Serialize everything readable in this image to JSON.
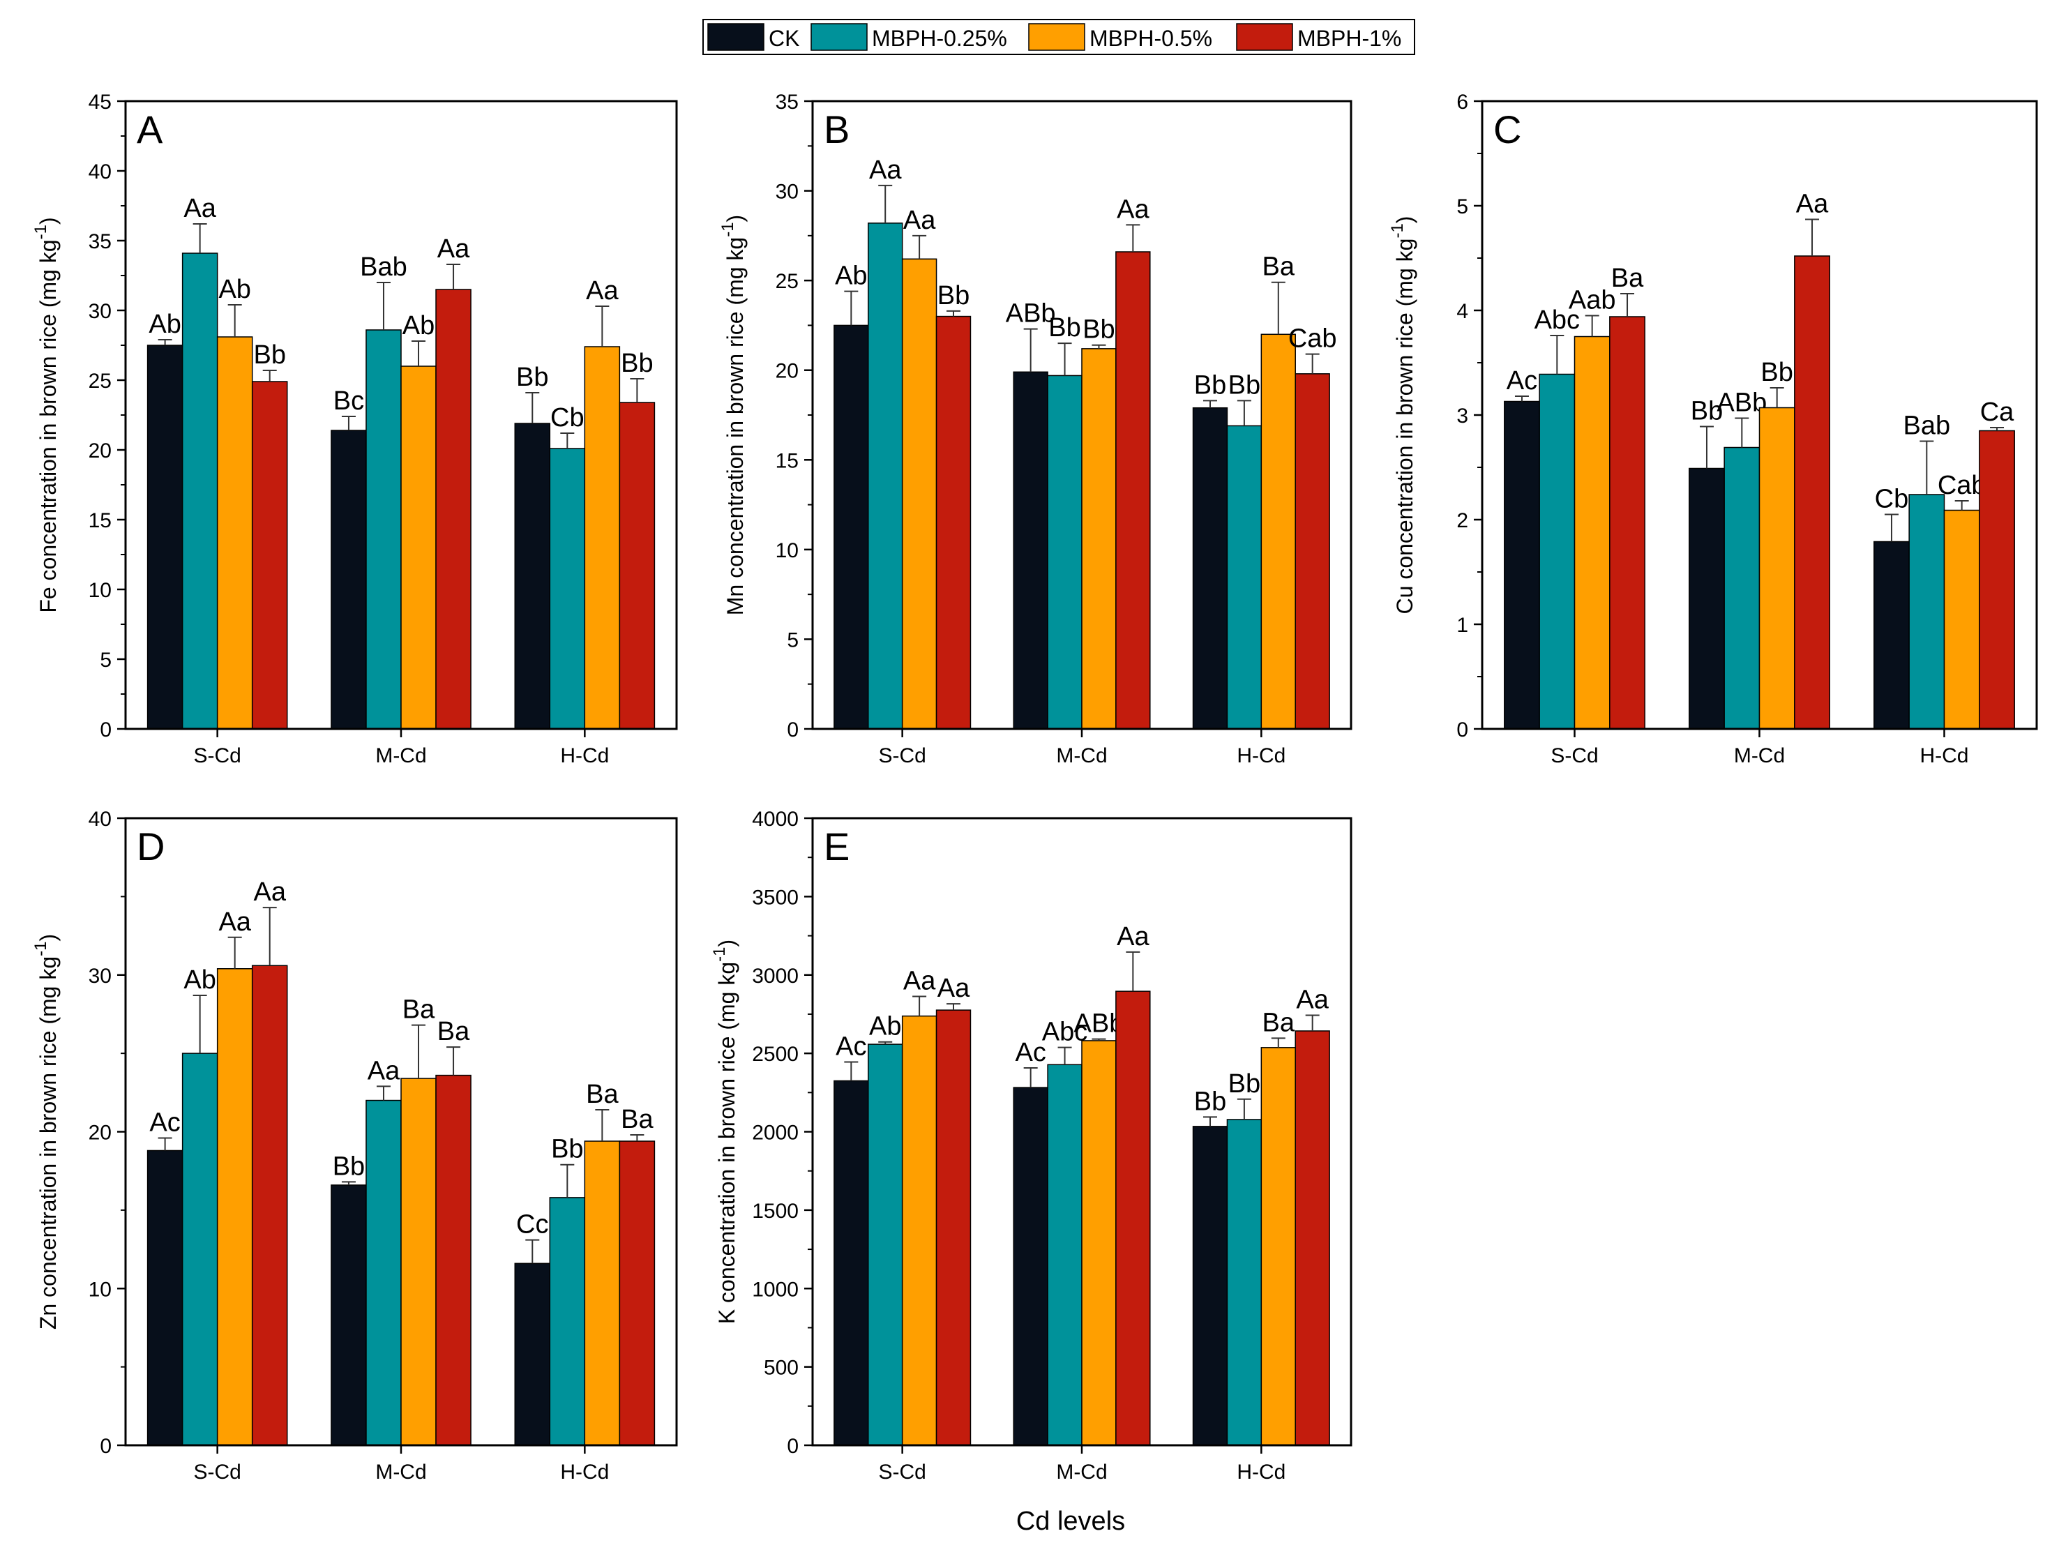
{
  "legend": [
    {
      "label": "CK",
      "color": "#070f1b"
    },
    {
      "label": "MBPH-0.25%",
      "color": "#00929a"
    },
    {
      "label": "MBPH-0.5%",
      "color": "#ff9f00"
    },
    {
      "label": "MBPH-1%",
      "color": "#c31c0d"
    }
  ],
  "x_axis_title": "Cd levels",
  "chart_data": [
    {
      "type": "bar",
      "panel": "A",
      "ylabel_main": "Fe concentration in brown rice",
      "ylabel_unit": "(mg kg",
      "ylabel_exp": "-1",
      "ylabel_close": ")",
      "categories": [
        "S-Cd",
        "M-Cd",
        "H-Cd"
      ],
      "ylim": [
        0,
        45
      ],
      "yticks": [
        0,
        5,
        10,
        15,
        20,
        25,
        30,
        35,
        40,
        45
      ],
      "series": [
        {
          "name": "CK",
          "values": [
            27.5,
            21.4,
            21.9
          ],
          "errors": [
            0.4,
            1.0,
            2.2
          ],
          "labels": [
            "Ab",
            "Bc",
            "Bb"
          ]
        },
        {
          "name": "MBPH-0.25%",
          "values": [
            34.1,
            28.6,
            20.1
          ],
          "errors": [
            2.1,
            3.4,
            1.1
          ],
          "labels": [
            "Aa",
            "Bab",
            "Cb"
          ]
        },
        {
          "name": "MBPH-0.5%",
          "values": [
            28.1,
            26.0,
            27.4
          ],
          "errors": [
            2.3,
            1.8,
            2.9
          ],
          "labels": [
            "Ab",
            "Ab",
            "Aa"
          ]
        },
        {
          "name": "MBPH-1%",
          "values": [
            24.9,
            31.5,
            23.4
          ],
          "errors": [
            0.8,
            1.8,
            1.7
          ],
          "labels": [
            "Bb",
            "Aa",
            "Bb"
          ]
        }
      ]
    },
    {
      "type": "bar",
      "panel": "B",
      "ylabel_main": "Mn concentration in brown rice",
      "ylabel_unit": "(mg kg",
      "ylabel_exp": "-1",
      "ylabel_close": ")",
      "categories": [
        "S-Cd",
        "M-Cd",
        "H-Cd"
      ],
      "ylim": [
        0,
        35
      ],
      "yticks": [
        0,
        5,
        10,
        15,
        20,
        25,
        30,
        35
      ],
      "series": [
        {
          "name": "CK",
          "values": [
            22.5,
            19.9,
            17.9
          ],
          "errors": [
            1.9,
            2.4,
            0.4
          ],
          "labels": [
            "Ab",
            "ABb",
            "Bb"
          ]
        },
        {
          "name": "MBPH-0.25%",
          "values": [
            28.2,
            19.7,
            16.9
          ],
          "errors": [
            2.1,
            1.8,
            1.4
          ],
          "labels": [
            "Aa",
            "Bb",
            "Bb"
          ]
        },
        {
          "name": "MBPH-0.5%",
          "values": [
            26.2,
            21.2,
            22.0
          ],
          "errors": [
            1.3,
            0.2,
            2.9
          ],
          "labels": [
            "Aa",
            "Bb",
            "Ba"
          ]
        },
        {
          "name": "MBPH-1%",
          "values": [
            23.0,
            26.6,
            19.8
          ],
          "errors": [
            0.3,
            1.5,
            1.1
          ],
          "labels": [
            "Bb",
            "Aa",
            "Cab"
          ]
        }
      ]
    },
    {
      "type": "bar",
      "panel": "C",
      "ylabel_main": "Cu concentration in brown rice",
      "ylabel_unit": "(mg kg",
      "ylabel_exp": "-1",
      "ylabel_close": ")",
      "categories": [
        "S-Cd",
        "M-Cd",
        "H-Cd"
      ],
      "ylim": [
        0,
        6
      ],
      "yticks": [
        0,
        1,
        2,
        3,
        4,
        5,
        6
      ],
      "series": [
        {
          "name": "CK",
          "values": [
            3.13,
            2.49,
            1.79
          ],
          "errors": [
            0.05,
            0.4,
            0.26
          ],
          "labels": [
            "Ac",
            "Bb",
            "Cb"
          ]
        },
        {
          "name": "MBPH-0.25%",
          "values": [
            3.39,
            2.69,
            2.24
          ],
          "errors": [
            0.37,
            0.28,
            0.51
          ],
          "labels": [
            "Abc",
            "ABb",
            "Bab"
          ]
        },
        {
          "name": "MBPH-0.5%",
          "values": [
            3.75,
            3.07,
            2.09
          ],
          "errors": [
            0.2,
            0.19,
            0.09
          ],
          "labels": [
            "Aab",
            "Bb",
            "Cab"
          ]
        },
        {
          "name": "MBPH-1%",
          "values": [
            3.94,
            4.52,
            2.85
          ],
          "errors": [
            0.22,
            0.35,
            0.03
          ],
          "labels": [
            "Ba",
            "Aa",
            "Ca"
          ]
        }
      ]
    },
    {
      "type": "bar",
      "panel": "D",
      "ylabel_main": "Zn concentration in brown rice",
      "ylabel_unit": "(mg kg",
      "ylabel_exp": "-1",
      "ylabel_close": ")",
      "categories": [
        "S-Cd",
        "M-Cd",
        "H-Cd"
      ],
      "ylim": [
        0,
        40
      ],
      "yticks": [
        0,
        10,
        20,
        30,
        40
      ],
      "series": [
        {
          "name": "CK",
          "values": [
            18.8,
            16.6,
            11.6
          ],
          "errors": [
            0.8,
            0.2,
            1.5
          ],
          "labels": [
            "Ac",
            "Bb",
            "Cc"
          ]
        },
        {
          "name": "MBPH-0.25%",
          "values": [
            25.0,
            22.0,
            15.8
          ],
          "errors": [
            3.7,
            0.9,
            2.1
          ],
          "labels": [
            "Ab",
            "Aa",
            "Bb"
          ]
        },
        {
          "name": "MBPH-0.5%",
          "values": [
            30.4,
            23.4,
            19.4
          ],
          "errors": [
            2.0,
            3.4,
            2.0
          ],
          "labels": [
            "Aa",
            "Ba",
            "Ba"
          ]
        },
        {
          "name": "MBPH-1%",
          "values": [
            30.6,
            23.6,
            19.4
          ],
          "errors": [
            3.7,
            1.8,
            0.4
          ],
          "labels": [
            "Aa",
            "Ba",
            "Ba"
          ]
        }
      ]
    },
    {
      "type": "bar",
      "panel": "E",
      "ylabel_main": "K concentration in brown rice",
      "ylabel_unit": "(mg kg",
      "ylabel_exp": "-1",
      "ylabel_close": ")",
      "categories": [
        "S-Cd",
        "M-Cd",
        "H-Cd"
      ],
      "ylim": [
        0,
        4000
      ],
      "yticks": [
        0,
        500,
        1000,
        1500,
        2000,
        2500,
        3000,
        3500,
        4000
      ],
      "series": [
        {
          "name": "CK",
          "values": [
            2325,
            2282,
            2034
          ],
          "errors": [
            120,
            125,
            60
          ],
          "labels": [
            "Ac",
            "Ac",
            "Bb"
          ]
        },
        {
          "name": "MBPH-0.25%",
          "values": [
            2558,
            2428,
            2078
          ],
          "errors": [
            15,
            110,
            130
          ],
          "labels": [
            "Ab",
            "Abc",
            "Bb"
          ]
        },
        {
          "name": "MBPH-0.5%",
          "values": [
            2738,
            2581,
            2537
          ],
          "errors": [
            125,
            10,
            60
          ],
          "labels": [
            "Aa",
            "ABb",
            "Ba"
          ]
        },
        {
          "name": "MBPH-1%",
          "values": [
            2776,
            2896,
            2643
          ],
          "errors": [
            40,
            250,
            100
          ],
          "labels": [
            "Aa",
            "Aa",
            "Aa"
          ]
        }
      ]
    }
  ]
}
